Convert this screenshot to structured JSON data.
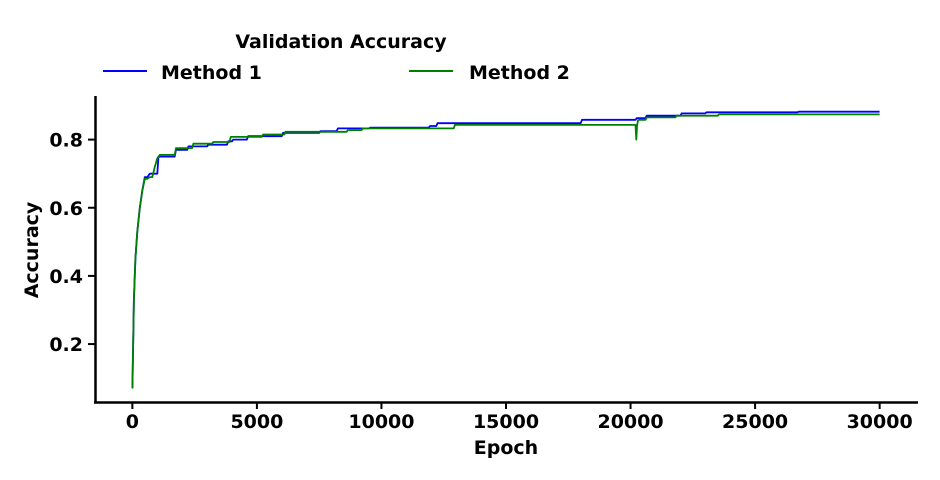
{
  "chart_data": {
    "type": "line",
    "title": "",
    "xlabel": "Epoch",
    "ylabel": "Accuracy",
    "xlim": [
      -1500,
      31500
    ],
    "ylim": [
      0.03,
      0.925
    ],
    "xticks": [
      0,
      5000,
      10000,
      15000,
      20000,
      25000,
      30000
    ],
    "yticks": [
      0.2,
      0.4,
      0.6,
      0.8
    ],
    "grid": false,
    "legend": {
      "title": "Validation Accuracy",
      "placement": "top-center, outside plot, two columns"
    },
    "series": [
      {
        "name": "Method 1",
        "color": "#0000ff",
        "x": [
          0,
          60,
          120,
          200,
          300,
          400,
          500,
          600,
          700,
          750,
          1000,
          1050,
          1100,
          1700,
          1750,
          2200,
          2250,
          3000,
          3050,
          3800,
          3850,
          4000,
          4050,
          4600,
          4650,
          6000,
          6050,
          7500,
          7550,
          8200,
          8250,
          9500,
          9550,
          11900,
          11950,
          12200,
          12250,
          18000,
          18050,
          20200,
          20250,
          20600,
          20650,
          22000,
          22050,
          23000,
          23050,
          26700,
          26750,
          30000
        ],
        "y": [
          0.07,
          0.33,
          0.45,
          0.53,
          0.6,
          0.65,
          0.69,
          0.69,
          0.7,
          0.7,
          0.7,
          0.75,
          0.75,
          0.75,
          0.77,
          0.77,
          0.78,
          0.78,
          0.785,
          0.785,
          0.795,
          0.795,
          0.8,
          0.8,
          0.81,
          0.81,
          0.82,
          0.82,
          0.825,
          0.825,
          0.833,
          0.833,
          0.835,
          0.835,
          0.84,
          0.84,
          0.848,
          0.848,
          0.858,
          0.858,
          0.863,
          0.863,
          0.87,
          0.87,
          0.877,
          0.877,
          0.88,
          0.88,
          0.882,
          0.882
        ]
      },
      {
        "name": "Method 2",
        "color": "#008000",
        "x": [
          0,
          60,
          120,
          200,
          300,
          400,
          500,
          600,
          700,
          800,
          900,
          1000,
          1100,
          1200,
          1700,
          1750,
          2400,
          2450,
          3200,
          3250,
          3900,
          3950,
          5200,
          5250,
          6100,
          6150,
          8600,
          8650,
          9200,
          9250,
          12900,
          12950,
          20200,
          20230,
          20260,
          20300,
          20350,
          20600,
          20650,
          21800,
          21850,
          23500,
          23550,
          30000
        ],
        "y": [
          0.07,
          0.33,
          0.45,
          0.53,
          0.6,
          0.65,
          0.685,
          0.685,
          0.69,
          0.69,
          0.72,
          0.745,
          0.755,
          0.755,
          0.755,
          0.775,
          0.775,
          0.788,
          0.788,
          0.793,
          0.793,
          0.808,
          0.808,
          0.815,
          0.815,
          0.823,
          0.823,
          0.828,
          0.828,
          0.833,
          0.833,
          0.843,
          0.843,
          0.8,
          0.84,
          0.857,
          0.858,
          0.858,
          0.865,
          0.865,
          0.87,
          0.87,
          0.874,
          0.874
        ]
      }
    ]
  }
}
